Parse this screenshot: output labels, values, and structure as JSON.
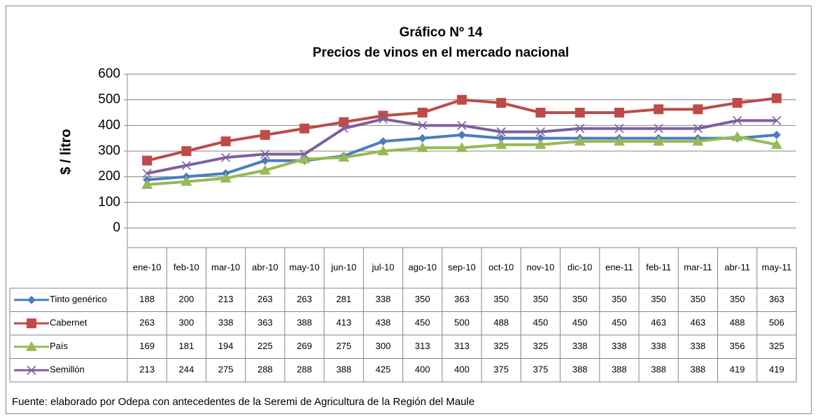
{
  "chart_data": {
    "type": "line",
    "title": "Gráfico Nº 14",
    "subtitle": "Precios de vinos en el mercado nacional",
    "y_label": "$ / litro",
    "source": "Fuente: elaborado por Odepa con antecedentes de la Seremi de Agricultura de la Región del Maule",
    "categories": [
      "ene-10",
      "feb-10",
      "mar-10",
      "abr-10",
      "may-10",
      "jun-10",
      "jul-10",
      "ago-10",
      "sep-10",
      "oct-10",
      "nov-10",
      "dic-10",
      "ene-11",
      "feb-11",
      "mar-11",
      "abr-11",
      "may-11"
    ],
    "series": [
      {
        "name": "Tinto genérico",
        "color": "#4a7ebb",
        "marker": "diamond",
        "values": [
          188,
          200,
          213,
          263,
          263,
          281,
          338,
          350,
          363,
          350,
          350,
          350,
          350,
          350,
          350,
          350,
          363
        ]
      },
      {
        "name": "Cabernet",
        "color": "#be4b48",
        "marker": "square",
        "values": [
          263,
          300,
          338,
          363,
          388,
          413,
          438,
          450,
          500,
          488,
          450,
          450,
          450,
          463,
          463,
          488,
          506
        ]
      },
      {
        "name": "País",
        "color": "#98b954",
        "marker": "triangle",
        "values": [
          169,
          181,
          194,
          225,
          269,
          275,
          300,
          313,
          313,
          325,
          325,
          338,
          338,
          338,
          338,
          356,
          325
        ]
      },
      {
        "name": "Semillón",
        "color": "#7d60a0",
        "marker": "x",
        "values": [
          213,
          244,
          275,
          288,
          288,
          388,
          425,
          400,
          400,
          375,
          375,
          388,
          388,
          388,
          388,
          419,
          419
        ]
      }
    ],
    "ylim": [
      0,
      600
    ],
    "yticks": [
      0,
      100,
      200,
      300,
      400,
      500,
      600
    ],
    "grid": true
  }
}
